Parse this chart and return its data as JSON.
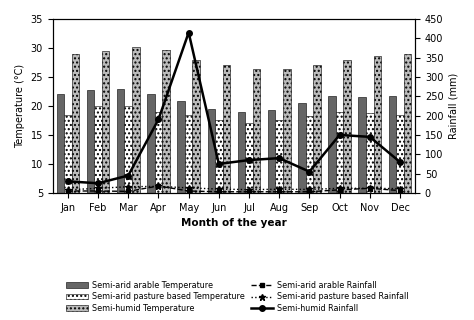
{
  "months": [
    "Jan",
    "Feb",
    "Mar",
    "Apr",
    "May",
    "Jun",
    "Jul",
    "Aug",
    "Sep",
    "Oct",
    "Nov",
    "Dec"
  ],
  "semi_arid_arable_temp": [
    22,
    22.7,
    23,
    22,
    20.8,
    19.5,
    19,
    19.3,
    20.5,
    21.7,
    21.5,
    21.7
  ],
  "semi_arid_pasture_temp": [
    18.5,
    20,
    20,
    19,
    18.5,
    17.5,
    17,
    17.5,
    18.2,
    19,
    18.8,
    18.5
  ],
  "semi_humid_temp": [
    29,
    29.5,
    30.2,
    29.7,
    28,
    27,
    26.3,
    26.3,
    27,
    28,
    28.7,
    29
  ],
  "semi_arid_arable_rainfall": [
    5,
    5,
    4,
    18,
    5,
    3,
    3,
    3,
    3,
    8,
    12,
    6
  ],
  "semi_arid_pasture_rainfall": [
    8,
    12,
    16,
    17,
    13,
    10,
    8.5,
    9.5,
    9,
    12,
    12,
    11
  ],
  "semi_humid_rainfall": [
    30,
    25,
    45,
    190,
    415,
    75,
    85,
    90,
    55,
    150,
    145,
    80
  ],
  "ylim_left": [
    5,
    35
  ],
  "ylim_right": [
    0,
    450
  ],
  "ylabel_left": "Temperature (°C)",
  "ylabel_right": "Rainfall (mm)",
  "xlabel": "Month of the year",
  "bar_width": 0.25,
  "legend_labels_col1": [
    "Semi-arid arable Temperature",
    "Semi-humid Temperature",
    "Semi-arid pasture based Rainfall"
  ],
  "legend_labels_col2": [
    "Semi-arid pasture based Temperature",
    "Semi-arid arable Rainfall",
    "Semi-humid Rainfall"
  ]
}
